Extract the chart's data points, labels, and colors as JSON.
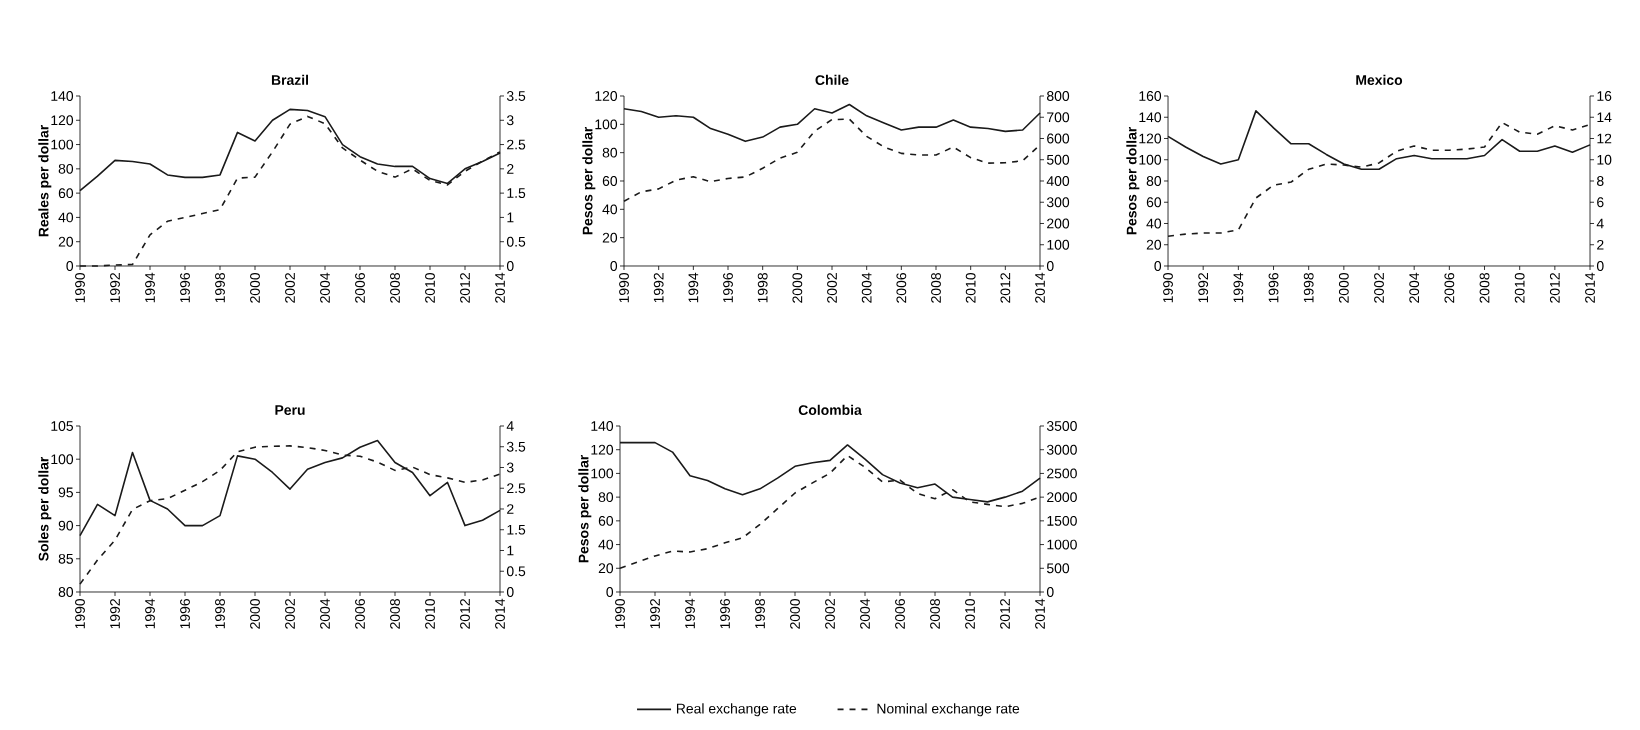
{
  "chart_data": [
    {
      "type": "line",
      "title": "Brazil",
      "ylabel": "Reales per dollar",
      "x": [
        1990,
        1991,
        1992,
        1993,
        1994,
        1995,
        1996,
        1997,
        1998,
        1999,
        2000,
        2001,
        2002,
        2003,
        2004,
        2005,
        2006,
        2007,
        2008,
        2009,
        2010,
        2011,
        2012,
        2013,
        2014
      ],
      "xlim": [
        1990,
        2014
      ],
      "xticks": [
        1990,
        1992,
        1994,
        1996,
        1998,
        2000,
        2002,
        2004,
        2006,
        2008,
        2010,
        2012,
        2014
      ],
      "ylim": [
        0,
        140
      ],
      "yticks": [
        0,
        20,
        40,
        60,
        80,
        100,
        120,
        140
      ],
      "y2lim": [
        0,
        3.5
      ],
      "y2ticks": [
        0,
        0.5,
        1,
        1.5,
        2,
        2.5,
        3,
        3.5
      ],
      "series": [
        {
          "color": "#1a1a1a",
          "line_style": "solid",
          "values": [
            62,
            74,
            87,
            86,
            84,
            75,
            73,
            73,
            75,
            110,
            103,
            120,
            129,
            128,
            123,
            100,
            90,
            84,
            82,
            82,
            72,
            68,
            80,
            86,
            93
          ]
        },
        {
          "color": "#1a1a1a",
          "line_style": "dashed",
          "axis": "y2",
          "values": [
            0,
            0,
            0.02,
            0.03,
            0.64,
            0.92,
            1.0,
            1.08,
            1.16,
            1.81,
            1.83,
            2.35,
            2.92,
            3.08,
            2.93,
            2.43,
            2.18,
            1.95,
            1.83,
            2.0,
            1.76,
            1.67,
            1.95,
            2.16,
            2.35
          ]
        }
      ]
    },
    {
      "type": "line",
      "title": "Chile",
      "ylabel": "Pesos per dollar",
      "x": [
        1990,
        1991,
        1992,
        1993,
        1994,
        1995,
        1996,
        1997,
        1998,
        1999,
        2000,
        2001,
        2002,
        2003,
        2004,
        2005,
        2006,
        2007,
        2008,
        2009,
        2010,
        2011,
        2012,
        2013,
        2014
      ],
      "xlim": [
        1990,
        2014
      ],
      "xticks": [
        1990,
        1992,
        1994,
        1996,
        1998,
        2000,
        2002,
        2004,
        2006,
        2008,
        2010,
        2012,
        2014
      ],
      "ylim": [
        0,
        120
      ],
      "yticks": [
        0,
        20,
        40,
        60,
        80,
        100,
        120
      ],
      "y2lim": [
        0,
        800
      ],
      "y2ticks": [
        0,
        100,
        200,
        300,
        400,
        500,
        600,
        700,
        800
      ],
      "series": [
        {
          "color": "#1a1a1a",
          "line_style": "solid",
          "values": [
            111,
            109,
            105,
            106,
            105,
            97,
            93,
            88,
            91,
            98,
            100,
            111,
            108,
            114,
            106,
            101,
            96,
            98,
            98,
            103,
            98,
            97,
            95,
            96,
            108
          ]
        },
        {
          "color": "#1a1a1a",
          "line_style": "dashed",
          "axis": "y2",
          "values": [
            305,
            349,
            363,
            404,
            420,
            397,
            412,
            419,
            460,
            508,
            535,
            635,
            689,
            691,
            610,
            560,
            530,
            522,
            522,
            560,
            510,
            484,
            486,
            495,
            570
          ]
        }
      ]
    },
    {
      "type": "line",
      "title": "Mexico",
      "ylabel": "Pesos per dollar",
      "x": [
        1990,
        1991,
        1992,
        1993,
        1994,
        1995,
        1996,
        1997,
        1998,
        1999,
        2000,
        2001,
        2002,
        2003,
        2004,
        2005,
        2006,
        2007,
        2008,
        2009,
        2010,
        2011,
        2012,
        2013,
        2014
      ],
      "xlim": [
        1990,
        2014
      ],
      "xticks": [
        1990,
        1992,
        1994,
        1996,
        1998,
        2000,
        2002,
        2004,
        2006,
        2008,
        2010,
        2012,
        2014
      ],
      "ylim": [
        0,
        160
      ],
      "yticks": [
        0,
        20,
        40,
        60,
        80,
        100,
        120,
        140,
        160
      ],
      "y2lim": [
        0,
        16
      ],
      "y2ticks": [
        0,
        2,
        4,
        6,
        8,
        10,
        12,
        14,
        16
      ],
      "series": [
        {
          "color": "#1a1a1a",
          "line_style": "solid",
          "values": [
            122,
            112,
            103,
            96,
            100,
            146,
            130,
            115,
            115,
            105,
            96,
            91,
            91,
            101,
            104,
            101,
            101,
            101,
            104,
            119,
            108,
            108,
            113,
            107,
            114
          ]
        },
        {
          "color": "#1a1a1a",
          "line_style": "dashed",
          "axis": "y2",
          "values": [
            2.8,
            3.0,
            3.1,
            3.1,
            3.4,
            6.4,
            7.6,
            7.9,
            9.1,
            9.6,
            9.5,
            9.3,
            9.7,
            10.8,
            11.3,
            10.9,
            10.9,
            11.0,
            11.2,
            13.5,
            12.6,
            12.4,
            13.2,
            12.8,
            13.3
          ]
        }
      ]
    },
    {
      "type": "line",
      "title": "Peru",
      "ylabel": "Soles per dollar",
      "x": [
        1990,
        1991,
        1992,
        1993,
        1994,
        1995,
        1996,
        1997,
        1998,
        1999,
        2000,
        2001,
        2002,
        2003,
        2004,
        2005,
        2006,
        2007,
        2008,
        2009,
        2010,
        2011,
        2012,
        2013,
        2014
      ],
      "xlim": [
        1990,
        2014
      ],
      "xticks": [
        1990,
        1992,
        1994,
        1996,
        1998,
        2000,
        2002,
        2004,
        2006,
        2008,
        2010,
        2012,
        2014
      ],
      "ylim": [
        80,
        105
      ],
      "yticks": [
        80,
        85,
        90,
        95,
        100,
        105
      ],
      "y2lim": [
        0,
        4
      ],
      "y2ticks": [
        0,
        0.5,
        1,
        1.5,
        2,
        2.5,
        3,
        3.5,
        4
      ],
      "series": [
        {
          "color": "#1a1a1a",
          "line_style": "solid",
          "values": [
            88.5,
            93.2,
            91.5,
            101,
            93.8,
            92.5,
            90,
            90,
            91.5,
            100.5,
            100,
            98,
            95.5,
            98.5,
            99.5,
            100.2,
            101.8,
            102.8,
            99.5,
            98,
            94.5,
            96.5,
            90,
            90.8,
            92.3
          ]
        },
        {
          "color": "#1a1a1a",
          "line_style": "dashed",
          "axis": "y2",
          "values": [
            0.19,
            0.77,
            1.25,
            1.99,
            2.2,
            2.25,
            2.45,
            2.66,
            2.93,
            3.38,
            3.49,
            3.51,
            3.52,
            3.48,
            3.41,
            3.3,
            3.27,
            3.13,
            2.93,
            3.01,
            2.83,
            2.75,
            2.64,
            2.7,
            2.84
          ]
        }
      ]
    },
    {
      "type": "line",
      "title": "Colombia",
      "ylabel": "Pesos per dollar",
      "legend": "bottom",
      "x": [
        1990,
        1991,
        1992,
        1993,
        1994,
        1995,
        1996,
        1997,
        1998,
        1999,
        2000,
        2001,
        2002,
        2003,
        2004,
        2005,
        2006,
        2007,
        2008,
        2009,
        2010,
        2011,
        2012,
        2013,
        2014
      ],
      "xlim": [
        1990,
        2014
      ],
      "xticks": [
        1990,
        1992,
        1994,
        1996,
        1998,
        2000,
        2002,
        2004,
        2006,
        2008,
        2010,
        2012,
        2014
      ],
      "ylim": [
        0,
        140
      ],
      "yticks": [
        0,
        20,
        40,
        60,
        80,
        100,
        120,
        140
      ],
      "y2lim": [
        0,
        3500
      ],
      "y2ticks": [
        0,
        500,
        1000,
        1500,
        2000,
        2500,
        3000,
        3500
      ],
      "series": [
        {
          "name": "Real exchange rate",
          "color": "#1a1a1a",
          "line_style": "solid",
          "values": [
            126,
            126,
            126,
            118,
            98,
            94,
            87,
            82,
            87,
            96,
            106,
            109,
            111,
            124,
            112,
            99,
            92,
            88,
            91,
            80,
            78,
            76,
            80,
            85,
            96
          ]
        },
        {
          "name": "Nominal exchange rate",
          "color": "#1a1a1a",
          "line_style": "dashed",
          "axis": "y2",
          "values": [
            502,
            633,
            760,
            863,
            845,
            913,
            1037,
            1141,
            1426,
            1756,
            2088,
            2300,
            2505,
            2878,
            2628,
            2321,
            2358,
            2078,
            1967,
            2157,
            1898,
            1848,
            1797,
            1869,
            2001
          ]
        }
      ]
    }
  ]
}
